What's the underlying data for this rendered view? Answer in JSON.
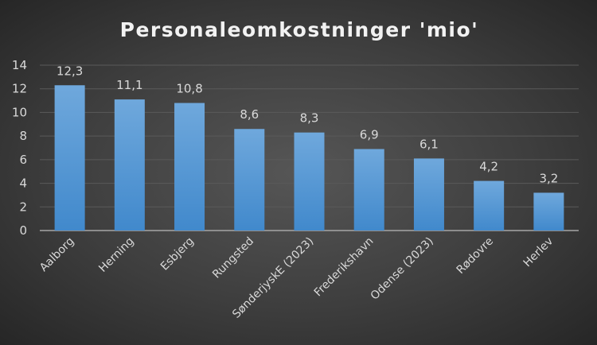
{
  "chart_data": {
    "type": "bar",
    "title": "Personaleomkostninger 'mio'",
    "xlabel": "",
    "ylabel": "",
    "ylim": [
      0,
      14
    ],
    "yticks": [
      0,
      2,
      4,
      6,
      8,
      10,
      12,
      14
    ],
    "grid": true,
    "legend": "none",
    "categories": [
      "Aalborg",
      "Herning",
      "Esbjerg",
      "Rungsted",
      "SønderjyskE (2023)",
      "Frederikshavn",
      "Odense (2023)",
      "Rødovre",
      "Herlev"
    ],
    "values": [
      12.3,
      11.1,
      10.8,
      8.6,
      8.3,
      6.9,
      6.1,
      4.2,
      3.2
    ],
    "data_labels": [
      "12,3",
      "11,1",
      "10,8",
      "8,6",
      "8,3",
      "6,9",
      "6,1",
      "4,2",
      "3,2"
    ],
    "bar_color_top": "#6fa8dc",
    "bar_color_bottom": "#4189cc"
  }
}
